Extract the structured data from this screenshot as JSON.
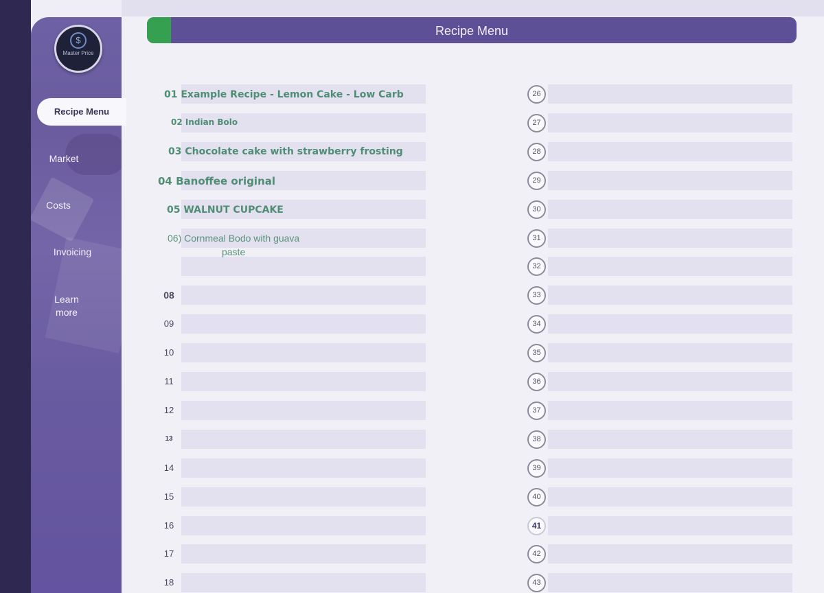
{
  "brand": {
    "icon": "dollar-icon",
    "name": "Master Price"
  },
  "sidebar": {
    "active": "Recipe Menu",
    "items": [
      "Market",
      "Costs",
      "Invoicing",
      "Learn\nmore"
    ]
  },
  "header": {
    "title": "Recipe Menu"
  },
  "left": {
    "recipes": [
      "01 Example Recipe - Lemon Cake - Low Carb",
      "02 Indian Bolo",
      "03 Chocolate cake with strawberry frosting",
      "04 Banoffee original",
      "05 WALNUT CUPCAKE",
      "06) Cornmeal Bodo with guava\npaste"
    ],
    "numbers": [
      "08",
      "09",
      "10",
      "11",
      "12",
      "13",
      "14",
      "15",
      "16",
      "17",
      "18"
    ]
  },
  "right": {
    "numbers": [
      "26",
      "27",
      "28",
      "29",
      "30",
      "31",
      "32",
      "33",
      "34",
      "35",
      "36",
      "37",
      "38",
      "39",
      "40",
      "41",
      "42",
      "43"
    ]
  },
  "colors": {
    "accent": "#35a04f",
    "header": "#5e5096",
    "sidebar": "#6d60a4",
    "recipe_text": "#4f8e74"
  }
}
